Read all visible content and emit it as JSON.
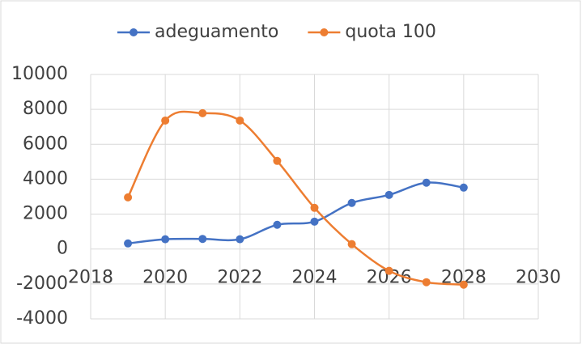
{
  "chart_data": {
    "type": "line",
    "smooth": true,
    "markers": true,
    "x": [
      2019,
      2020,
      2021,
      2022,
      2023,
      2024,
      2025,
      2026,
      2027,
      2028
    ],
    "series": [
      {
        "name": "adeguamento",
        "color": "#4472c4",
        "values": [
          320,
          560,
          580,
          560,
          1390,
          1570,
          2640,
          3100,
          3800,
          3520
        ]
      },
      {
        "name": "quota 100",
        "color": "#ed7d31",
        "values": [
          2960,
          7360,
          7780,
          7360,
          5050,
          2360,
          280,
          -1250,
          -1900,
          -2040
        ]
      }
    ],
    "xlim": [
      2018,
      2030
    ],
    "xticks": [
      2018,
      2020,
      2022,
      2024,
      2026,
      2028,
      2030
    ],
    "ylim": [
      -4000,
      10000
    ],
    "yticks": [
      -4000,
      -2000,
      0,
      2000,
      4000,
      6000,
      8000,
      10000
    ],
    "grid": true,
    "legend": "top"
  }
}
